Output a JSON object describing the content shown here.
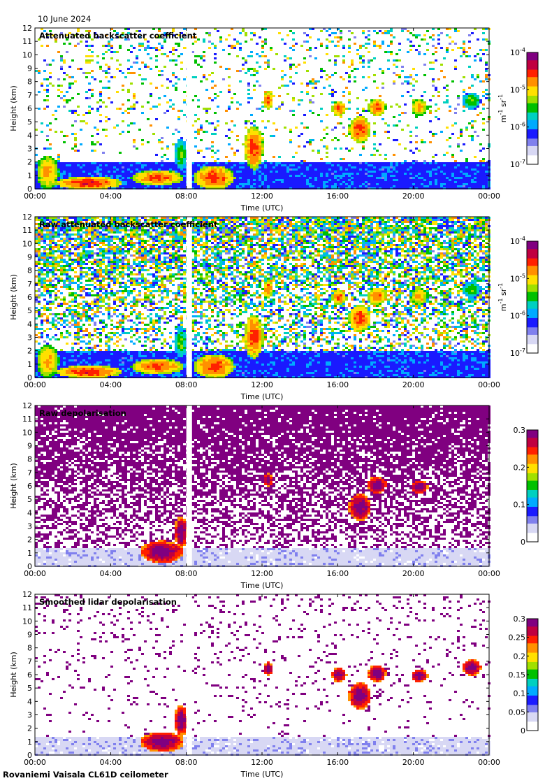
{
  "header": {
    "date": "10 June 2024"
  },
  "footer": {
    "station": "Rovaniemi Vaisala CL61D ceilometer"
  },
  "colors": {
    "rainbow": [
      "#ffffff",
      "#d8d8f4",
      "#8080ee",
      "#1a1aff",
      "#00aaff",
      "#00d0c0",
      "#00c000",
      "#a0e000",
      "#ffe000",
      "#ff9000",
      "#ff2000",
      "#c00040",
      "#800080"
    ],
    "data_gap": "#ffffff"
  },
  "chart_data": [
    {
      "type": "heatmap",
      "title": "Attenuated backscatter coefficient",
      "xlabel": "Time (UTC)",
      "ylabel": "Height (km)",
      "ylim": [
        0,
        12
      ],
      "yticks": [
        "0",
        "1",
        "2",
        "3",
        "4",
        "5",
        "6",
        "7",
        "8",
        "9",
        "10",
        "11",
        "12"
      ],
      "xticks": [
        "00:00",
        "04:00",
        "08:00",
        "12:00",
        "16:00",
        "20:00",
        "00:00"
      ],
      "xlim_hours": [
        0,
        24
      ],
      "data_gap_hours": [
        8.0,
        8.3
      ],
      "colorbar": {
        "scale": "log",
        "ticks": [
          {
            "base": "10",
            "exp": "-7",
            "value": -7
          },
          {
            "base": "10",
            "exp": "-6",
            "value": -6
          },
          {
            "base": "10",
            "exp": "-5",
            "value": -5
          },
          {
            "base": "10",
            "exp": "-4",
            "value": -4
          }
        ],
        "unit_main": "m",
        "unit_exp1": "-1",
        "unit_mid": " sr",
        "unit_exp2": "-1"
      },
      "features": [
        {
          "t0": 0.0,
          "t1": 1.2,
          "h0": 0.0,
          "h1": 2.6,
          "level": 0.72
        },
        {
          "t0": 1.0,
          "t1": 4.5,
          "h0": 0.0,
          "h1": 1.0,
          "level": 0.82
        },
        {
          "t0": 5.0,
          "t1": 7.8,
          "h0": 0.3,
          "h1": 1.5,
          "level": 0.78
        },
        {
          "t0": 7.3,
          "t1": 8.0,
          "h0": 1.5,
          "h1": 3.8,
          "level": 0.55
        },
        {
          "t0": 8.3,
          "t1": 10.5,
          "h0": 0.0,
          "h1": 1.8,
          "level": 0.8
        },
        {
          "t0": 11.0,
          "t1": 12.0,
          "h0": 1.5,
          "h1": 4.8,
          "level": 0.8
        },
        {
          "t0": 12.0,
          "t1": 12.5,
          "h0": 6.0,
          "h1": 7.4,
          "level": 0.78
        },
        {
          "t0": 15.6,
          "t1": 16.4,
          "h0": 5.5,
          "h1": 6.6,
          "level": 0.78
        },
        {
          "t0": 16.5,
          "t1": 17.7,
          "h0": 3.5,
          "h1": 5.5,
          "level": 0.8
        },
        {
          "t0": 17.5,
          "t1": 18.5,
          "h0": 5.5,
          "h1": 6.8,
          "level": 0.78
        },
        {
          "t0": 19.8,
          "t1": 20.7,
          "h0": 5.5,
          "h1": 6.8,
          "level": 0.72
        },
        {
          "t0": 22.5,
          "t1": 23.5,
          "h0": 6.0,
          "h1": 7.3,
          "level": 0.55
        }
      ],
      "background": {
        "low_level": 0.28,
        "aerosol_top_km": 2.0,
        "noise_density": 0.18
      }
    },
    {
      "type": "heatmap",
      "title": "Raw attenuated backscatter coefficient",
      "xlabel": "Time (UTC)",
      "ylabel": "Height (km)",
      "ylim": [
        0,
        12
      ],
      "yticks": [
        "0",
        "1",
        "2",
        "3",
        "4",
        "5",
        "6",
        "7",
        "8",
        "9",
        "10",
        "11",
        "12"
      ],
      "xticks": [
        "00:00",
        "04:00",
        "08:00",
        "12:00",
        "16:00",
        "20:00",
        "00:00"
      ],
      "xlim_hours": [
        0,
        24
      ],
      "data_gap_hours": [
        8.0,
        8.3
      ],
      "colorbar": {
        "scale": "log",
        "ticks": [
          {
            "base": "10",
            "exp": "-7",
            "value": -7
          },
          {
            "base": "10",
            "exp": "-6",
            "value": -6
          },
          {
            "base": "10",
            "exp": "-5",
            "value": -5
          },
          {
            "base": "10",
            "exp": "-4",
            "value": -4
          }
        ],
        "unit_main": "m",
        "unit_exp1": "-1",
        "unit_mid": " sr",
        "unit_exp2": "-1"
      },
      "features": [
        {
          "t0": 0.0,
          "t1": 1.2,
          "h0": 0.0,
          "h1": 2.6,
          "level": 0.72
        },
        {
          "t0": 1.0,
          "t1": 4.5,
          "h0": 0.0,
          "h1": 1.0,
          "level": 0.82
        },
        {
          "t0": 5.0,
          "t1": 7.8,
          "h0": 0.3,
          "h1": 1.5,
          "level": 0.78
        },
        {
          "t0": 7.3,
          "t1": 8.0,
          "h0": 1.5,
          "h1": 3.8,
          "level": 0.55
        },
        {
          "t0": 8.3,
          "t1": 10.5,
          "h0": 0.0,
          "h1": 1.8,
          "level": 0.8
        },
        {
          "t0": 11.0,
          "t1": 12.0,
          "h0": 1.5,
          "h1": 4.8,
          "level": 0.8
        },
        {
          "t0": 12.0,
          "t1": 12.5,
          "h0": 6.0,
          "h1": 7.4,
          "level": 0.78
        },
        {
          "t0": 15.6,
          "t1": 16.4,
          "h0": 5.5,
          "h1": 6.6,
          "level": 0.78
        },
        {
          "t0": 16.5,
          "t1": 17.7,
          "h0": 3.5,
          "h1": 5.5,
          "level": 0.8
        },
        {
          "t0": 17.5,
          "t1": 18.5,
          "h0": 5.5,
          "h1": 6.8,
          "level": 0.78
        },
        {
          "t0": 19.8,
          "t1": 20.7,
          "h0": 5.5,
          "h1": 6.8,
          "level": 0.72
        },
        {
          "t0": 22.5,
          "t1": 23.5,
          "h0": 6.0,
          "h1": 7.3,
          "level": 0.55
        }
      ],
      "background": {
        "low_level": 0.28,
        "aerosol_top_km": 2.0,
        "noise_density": 0.85
      }
    },
    {
      "type": "heatmap",
      "title": "Raw depolarisation",
      "xlabel": "Time (UTC)",
      "ylabel": "Height (km)",
      "ylim": [
        0,
        12
      ],
      "yticks": [
        "0",
        "1",
        "2",
        "3",
        "4",
        "5",
        "6",
        "7",
        "8",
        "9",
        "10",
        "11",
        "12"
      ],
      "xticks": [
        "00:00",
        "04:00",
        "08:00",
        "12:00",
        "16:00",
        "20:00",
        "00:00"
      ],
      "xlim_hours": [
        0,
        24
      ],
      "data_gap_hours": [
        8.0,
        8.3
      ],
      "colorbar": {
        "scale": "linear",
        "ticks": [
          {
            "label": "0",
            "value": 0
          },
          {
            "label": "0.1",
            "value": 0.1
          },
          {
            "label": "0.2",
            "value": 0.2
          },
          {
            "label": "0.3",
            "value": 0.3
          }
        ],
        "range": [
          0,
          0.3
        ]
      },
      "features": [
        {
          "t0": 5.5,
          "t1": 7.8,
          "h0": 0.3,
          "h1": 2.0,
          "level": 0.98
        },
        {
          "t0": 7.3,
          "t1": 8.0,
          "h0": 1.5,
          "h1": 3.8,
          "level": 0.98
        },
        {
          "t0": 12.0,
          "t1": 12.5,
          "h0": 6.0,
          "h1": 7.0,
          "level": 0.98
        },
        {
          "t0": 16.5,
          "t1": 17.7,
          "h0": 3.5,
          "h1": 5.5,
          "level": 0.98
        },
        {
          "t0": 17.5,
          "t1": 18.5,
          "h0": 5.5,
          "h1": 6.8,
          "level": 0.98
        },
        {
          "t0": 19.8,
          "t1": 20.7,
          "h0": 5.5,
          "h1": 6.5,
          "level": 0.98
        }
      ],
      "background": {
        "low_level": 0.12,
        "aerosol_top_km": 1.5,
        "noise_density": 0.95
      }
    },
    {
      "type": "heatmap",
      "title": "Smoothed lidar depolarisation",
      "xlabel": "Time (UTC)",
      "ylabel": "Height (km)",
      "ylim": [
        0,
        12
      ],
      "yticks": [
        "0",
        "1",
        "2",
        "3",
        "4",
        "5",
        "6",
        "7",
        "8",
        "9",
        "10",
        "11",
        "12"
      ],
      "xticks": [
        "00:00",
        "04:00",
        "08:00",
        "12:00",
        "16:00",
        "20:00",
        "00:00"
      ],
      "xlim_hours": [
        0,
        24
      ],
      "data_gap_hours": [
        8.0,
        8.3
      ],
      "colorbar": {
        "scale": "linear",
        "ticks": [
          {
            "label": "0",
            "value": 0
          },
          {
            "label": "0.05",
            "value": 0.05
          },
          {
            "label": "0.1",
            "value": 0.1
          },
          {
            "label": "0.15",
            "value": 0.15
          },
          {
            "label": "0.2",
            "value": 0.2
          },
          {
            "label": "0.25",
            "value": 0.25
          },
          {
            "label": "0.3",
            "value": 0.3
          }
        ],
        "range": [
          0,
          0.3
        ]
      },
      "features": [
        {
          "t0": 5.5,
          "t1": 7.8,
          "h0": 0.3,
          "h1": 1.8,
          "level": 0.98
        },
        {
          "t0": 7.3,
          "t1": 8.0,
          "h0": 1.5,
          "h1": 3.8,
          "level": 0.98
        },
        {
          "t0": 12.0,
          "t1": 12.5,
          "h0": 6.0,
          "h1": 7.0,
          "level": 0.98
        },
        {
          "t0": 15.6,
          "t1": 16.4,
          "h0": 5.5,
          "h1": 6.6,
          "level": 0.98
        },
        {
          "t0": 16.5,
          "t1": 17.7,
          "h0": 3.5,
          "h1": 5.5,
          "level": 0.98
        },
        {
          "t0": 17.5,
          "t1": 18.5,
          "h0": 5.5,
          "h1": 6.8,
          "level": 0.98
        },
        {
          "t0": 19.8,
          "t1": 20.7,
          "h0": 5.5,
          "h1": 6.5,
          "level": 0.98
        },
        {
          "t0": 22.5,
          "t1": 23.5,
          "h0": 6.0,
          "h1": 7.2,
          "level": 0.98
        }
      ],
      "background": {
        "low_level": 0.12,
        "aerosol_top_km": 1.5,
        "noise_density": 0.1
      }
    }
  ]
}
